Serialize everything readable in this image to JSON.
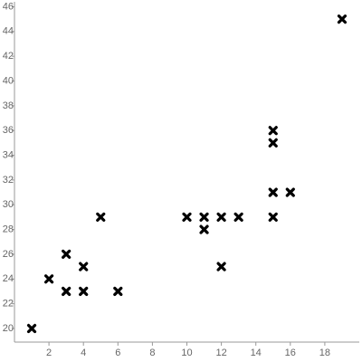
{
  "chart_data": {
    "type": "scatter",
    "x": [
      1,
      2,
      3,
      3,
      4,
      4,
      5,
      6,
      10,
      11,
      11,
      12,
      12,
      13,
      15,
      15,
      15,
      15,
      16,
      19
    ],
    "values": [
      20,
      24,
      26,
      23,
      25,
      23,
      29,
      23,
      29,
      29,
      28,
      29,
      25,
      29,
      36,
      35,
      31,
      29,
      31,
      45
    ],
    "color": "#000000",
    "xlim": [
      0,
      20
    ],
    "xticks": [
      2,
      4,
      6,
      8,
      10,
      12,
      14,
      16,
      18
    ],
    "ylim": [
      18.9,
      46.4
    ],
    "yticks": [
      20,
      22,
      24,
      26,
      28,
      30,
      32,
      34,
      36,
      38,
      40,
      42,
      44,
      46
    ],
    "grid": false
  }
}
